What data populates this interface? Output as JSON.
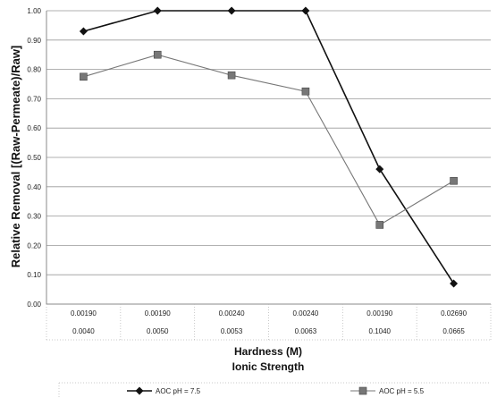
{
  "chart_data": {
    "type": "line",
    "title": "",
    "xlabel": "Hardness (M)",
    "xlabel2": "Ionic Strength",
    "ylabel": "Relative Removal [(Raw-Permeate)/Raw]",
    "ylim": [
      0,
      1
    ],
    "yticks": [
      "0.00",
      "0.10",
      "0.20",
      "0.30",
      "0.40",
      "0.50",
      "0.60",
      "0.70",
      "0.80",
      "0.90",
      "1.00"
    ],
    "categories": [
      {
        "hardness": "0.00190",
        "ionic": "0.0040"
      },
      {
        "hardness": "0.00190",
        "ionic": "0.0050"
      },
      {
        "hardness": "0.00240",
        "ionic": "0.0053"
      },
      {
        "hardness": "0.00240",
        "ionic": "0.0063"
      },
      {
        "hardness": "0.00190",
        "ionic": "0.1040"
      },
      {
        "hardness": "0.02690",
        "ionic": "0.0665"
      }
    ],
    "series": [
      {
        "name": "AOC pH = 7.5",
        "color": "#111111",
        "marker": "diamond",
        "values": [
          0.93,
          1.0,
          1.0,
          1.0,
          0.46,
          0.07
        ]
      },
      {
        "name": "AOC pH = 5.5",
        "color": "#777777",
        "marker": "square",
        "values": [
          0.775,
          0.85,
          0.78,
          0.725,
          0.27,
          0.42
        ]
      }
    ],
    "grid": true,
    "legend": "bottom"
  }
}
